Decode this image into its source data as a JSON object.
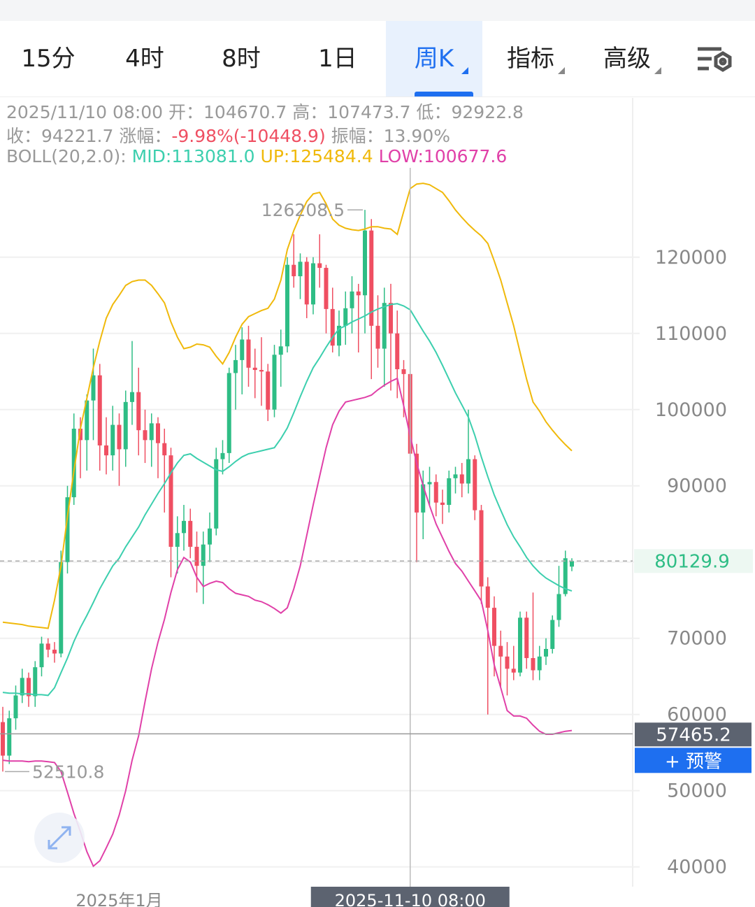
{
  "tabs": [
    "15分",
    "4时",
    "8时",
    "1日",
    "周K",
    "指标",
    "高级"
  ],
  "selected_tab": 4,
  "info": {
    "line1": "2025/11/10 08:00 开：104670.7 高：107473.7 低：92922.8",
    "line2": [
      "收：94221.7 涨幅：",
      "-9.98%(-10448.9)",
      "振幅：13.90%"
    ],
    "line3": [
      "BOLL(20,2.0):",
      "MID:113081.0",
      "UP:125484.4",
      "LOW:100677.6"
    ]
  },
  "chart_data": {
    "type": "candlestick",
    "categories": [
      null,
      null,
      null,
      null,
      null,
      null,
      null,
      null,
      null,
      null,
      null,
      null,
      null,
      null,
      null,
      null,
      null,
      null,
      "2025年1月",
      null,
      null,
      null,
      null,
      null,
      null,
      null,
      null,
      null,
      null,
      null,
      null,
      null,
      null,
      null,
      null,
      null,
      null,
      null,
      null,
      null,
      null,
      null,
      null,
      null,
      null,
      null,
      null,
      null,
      null,
      null,
      null,
      null,
      null,
      null,
      null,
      null,
      null,
      null,
      null,
      null,
      null,
      null,
      null,
      "2025-11-10 08:00",
      null,
      null,
      null,
      null,
      null,
      null,
      null,
      null,
      null,
      null,
      null,
      null,
      null,
      null,
      null,
      null,
      null,
      null,
      null,
      null,
      null,
      null,
      null,
      null,
      null
    ],
    "open": [
      59000,
      54600,
      59500,
      62500,
      64800,
      62400,
      66200,
      69300,
      68500,
      68000,
      80000,
      88500,
      97500,
      96000,
      101200,
      104500,
      95300,
      94000,
      98000,
      94800,
      101000,
      102300,
      97300,
      96000,
      98200,
      95600,
      94000,
      82000,
      83800,
      85400,
      82000,
      79500,
      82300,
      84400,
      93500,
      94300,
      104800,
      106500,
      109200,
      105500,
      105200,
      105000,
      100000,
      107200,
      108300,
      119000,
      117500,
      119400,
      113800,
      119200,
      118600,
      113200,
      108400,
      111000,
      113300,
      115500,
      115000,
      123500,
      111000,
      108000,
      114000,
      110000,
      105300,
      104670.7,
      94221.7,
      86500,
      90200,
      90500,
      87800,
      87500,
      91000,
      91500,
      90300,
      93500,
      86800,
      76800,
      74000,
      69000,
      67600,
      66000,
      65500,
      72700,
      67400,
      65800,
      67600,
      68600,
      72400,
      75800,
      79400
    ],
    "high": [
      61000,
      60500,
      63800,
      66000,
      65500,
      67000,
      70200,
      70000,
      69500,
      81500,
      90000,
      99500,
      99000,
      102000,
      108000,
      106000,
      99000,
      100500,
      99500,
      102500,
      109000,
      105500,
      100000,
      99500,
      99000,
      97500,
      95000,
      86000,
      87500,
      87000,
      84000,
      84000,
      86500,
      95000,
      96000,
      105500,
      108500,
      110800,
      111000,
      108000,
      109500,
      106000,
      108500,
      110500,
      120000,
      123000,
      120500,
      120000,
      120000,
      123000,
      119000,
      116000,
      113000,
      115500,
      117500,
      116500,
      126208.5,
      125000,
      115000,
      116000,
      116500,
      113000,
      106500,
      107473.7,
      95500,
      92000,
      92500,
      91500,
      89500,
      92000,
      92500,
      93000,
      100000,
      94000,
      87500,
      78000,
      75500,
      71000,
      69500,
      69000,
      73500,
      73500,
      76000,
      69000,
      70000,
      73000,
      79500,
      81500,
      80500
    ],
    "low": [
      52510.8,
      53500,
      58000,
      61500,
      61000,
      61000,
      65000,
      67500,
      66800,
      67500,
      78500,
      87500,
      91000,
      92000,
      96000,
      92000,
      91500,
      92000,
      90000,
      92500,
      98000,
      94000,
      93000,
      92500,
      91000,
      86500,
      78000,
      78500,
      81500,
      80500,
      76000,
      74500,
      80000,
      83500,
      91500,
      93000,
      100000,
      102000,
      103000,
      101500,
      100500,
      98500,
      99000,
      103000,
      107500,
      116000,
      114500,
      112000,
      112500,
      116000,
      110000,
      107500,
      107000,
      108500,
      110000,
      107500,
      110000,
      104000,
      105500,
      103000,
      102500,
      101500,
      99000,
      92922.8,
      80000,
      83000,
      87500,
      86000,
      85000,
      86500,
      89000,
      88500,
      89000,
      85500,
      74500,
      60000,
      65000,
      63500,
      62500,
      64500,
      65000,
      66000,
      64500,
      64500,
      66500,
      68000,
      71500,
      75500,
      78800
    ],
    "close": [
      54600,
      59500,
      62500,
      64800,
      62400,
      66200,
      69300,
      68500,
      68000,
      80000,
      88500,
      97500,
      96000,
      101200,
      104500,
      95300,
      94000,
      98000,
      94800,
      101000,
      102300,
      97300,
      96000,
      98200,
      95600,
      94000,
      82000,
      83800,
      85400,
      82000,
      79500,
      82300,
      84400,
      93500,
      94300,
      104800,
      106500,
      109200,
      105500,
      105200,
      105000,
      100000,
      107200,
      108300,
      119000,
      117500,
      119400,
      113800,
      119200,
      118600,
      113200,
      108400,
      111000,
      113300,
      115500,
      115000,
      123500,
      111000,
      108000,
      114000,
      110000,
      105300,
      104670.7,
      94221.7,
      86500,
      90200,
      90500,
      87800,
      87500,
      91000,
      91500,
      90300,
      93500,
      86800,
      76800,
      74000,
      69000,
      67600,
      66000,
      65500,
      72700,
      67400,
      65800,
      67600,
      68600,
      72400,
      75800,
      80500,
      80129.9
    ],
    "up_color": "#2ebd85",
    "down_color": "#ef4f62",
    "lines": [
      {
        "color": "#f0b90b",
        "values": [
          72100,
          72000,
          71900,
          71800,
          71600,
          71500,
          71400,
          71300,
          75000,
          79500,
          86000,
          92000,
          97500,
          101500,
          105500,
          109000,
          112000,
          113800,
          115000,
          116300,
          116800,
          117000,
          117000,
          116300,
          115200,
          114000,
          111500,
          109500,
          108000,
          108200,
          108600,
          108500,
          108200,
          107000,
          106000,
          107500,
          109500,
          111200,
          112200,
          112600,
          113000,
          113300,
          114500,
          117000,
          121000,
          123500,
          125500,
          127300,
          128300,
          128500,
          127000,
          125000,
          124200,
          123800,
          123600,
          123500,
          123700,
          124000,
          124000,
          123800,
          123700,
          123000,
          126000,
          129000,
          129600,
          129700,
          129500,
          129000,
          128500,
          127400,
          126200,
          125200,
          124300,
          123500,
          122800,
          121800,
          119500,
          117000,
          114000,
          111000,
          107500,
          104000,
          101000,
          99800,
          98400,
          97300,
          96300,
          95400,
          94600
        ]
      },
      {
        "color": "#3ccfae",
        "values": [
          62900,
          62800,
          62800,
          62700,
          62700,
          62600,
          62600,
          62500,
          63500,
          65500,
          67400,
          69600,
          71400,
          73000,
          74700,
          76500,
          78000,
          79500,
          80500,
          82000,
          83300,
          84600,
          86200,
          87600,
          89000,
          90300,
          91700,
          93000,
          94000,
          94200,
          93600,
          93100,
          92600,
          92100,
          91900,
          92500,
          93200,
          93800,
          94200,
          94400,
          94600,
          94800,
          95000,
          96200,
          97600,
          99600,
          101700,
          103700,
          105500,
          106800,
          108200,
          109500,
          110600,
          111000,
          111500,
          111900,
          112300,
          112800,
          113200,
          113500,
          113800,
          113900,
          113600,
          113100,
          111700,
          110300,
          109000,
          107500,
          105800,
          104000,
          102200,
          100600,
          99000,
          96600,
          93800,
          91200,
          88800,
          86800,
          84900,
          83300,
          82000,
          80600,
          79500,
          78600,
          77900,
          77400,
          76900,
          76500,
          76200
        ]
      },
      {
        "color": "#e040a8",
        "values": [
          54000,
          53900,
          53900,
          53900,
          53800,
          53900,
          53900,
          53800,
          53700,
          52500,
          49800,
          47000,
          44600,
          42000,
          40100,
          40800,
          42500,
          44300,
          46800,
          50000,
          54000,
          57200,
          61700,
          66000,
          69500,
          72500,
          76000,
          79000,
          80600,
          80000,
          78000,
          76800,
          77200,
          77500,
          77300,
          76500,
          75900,
          75700,
          75500,
          75000,
          74800,
          74400,
          73900,
          73300,
          74000,
          76500,
          79500,
          83500,
          87500,
          91300,
          95000,
          98000,
          99800,
          101000,
          101200,
          101400,
          101600,
          101900,
          102600,
          103200,
          103700,
          104100,
          100500,
          96500,
          93000,
          90000,
          87400,
          85000,
          83200,
          81400,
          79800,
          78800,
          77500,
          76200,
          74900,
          71000,
          66500,
          63500,
          60500,
          59800,
          59800,
          59500,
          58600,
          57800,
          57400,
          57400,
          57600,
          57800,
          57900
        ]
      }
    ],
    "ylim": [
      37400,
      140900
    ],
    "yticks": [
      40000,
      50000,
      60000,
      70000,
      80000,
      90000,
      100000,
      110000,
      120000
    ],
    "grid": true,
    "crosshair": 63,
    "alert_price": 57465.2,
    "alert_button": "+ 预警"
  }
}
